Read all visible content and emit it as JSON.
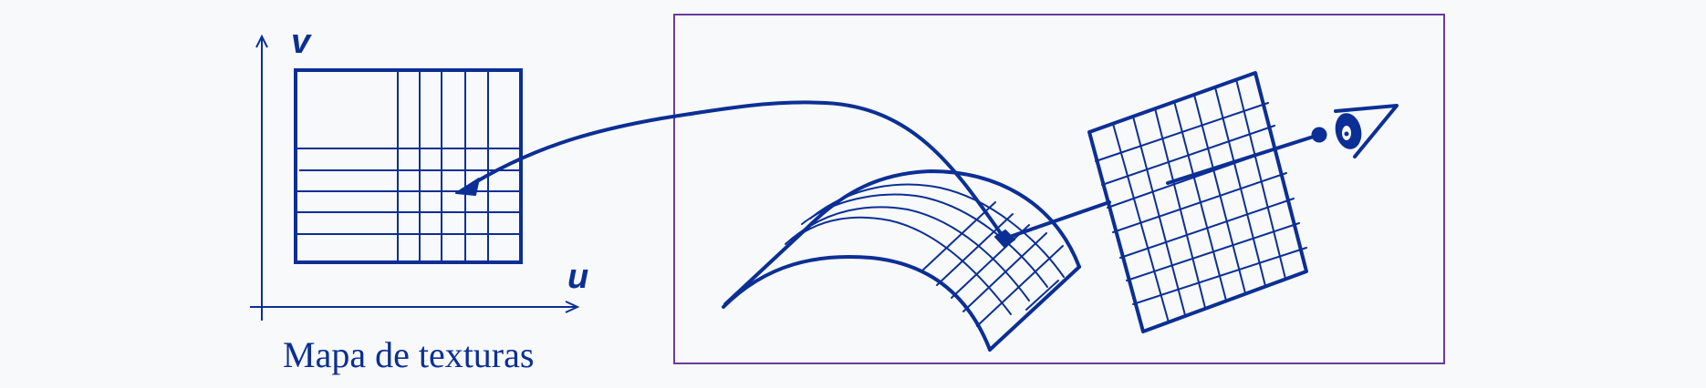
{
  "texture_map": {
    "caption": "Mapa de texturas",
    "axis_u_label": "u",
    "axis_v_label": "v"
  },
  "colors": {
    "stroke": "#0b2f95",
    "frame": "#6a3a9c",
    "background": "#f8f9fa"
  },
  "icons": [
    "eye-icon",
    "arrow-head-icon"
  ]
}
